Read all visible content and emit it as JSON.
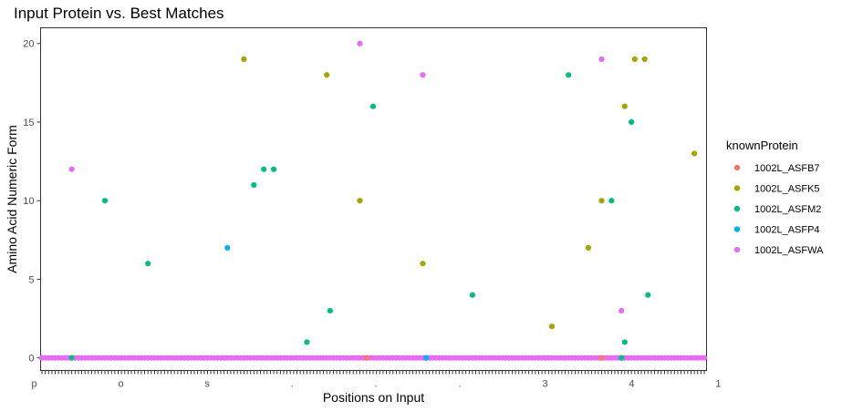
{
  "chart_data": {
    "type": "scatter",
    "title": "Input Protein vs. Best Matches",
    "xlabel": "Positions on Input",
    "ylabel": "Amino Acid Numeric Form",
    "ylim": [
      -0.8,
      21
    ],
    "yticks": [
      0,
      5,
      10,
      15,
      20
    ],
    "x_category_count": 201,
    "x_tick_labels_overlapping": "pos...341",
    "grid": false,
    "legend": {
      "title": "knownProtein",
      "placement": "right"
    },
    "series": [
      {
        "name": "1002L_ASFB7",
        "color": "#F8766D",
        "points": [
          [
            99,
            0
          ],
          [
            170,
            0
          ]
        ]
      },
      {
        "name": "1002L_ASFK5",
        "color": "#A3A500",
        "points": [
          [
            62,
            19
          ],
          [
            87,
            18
          ],
          [
            97,
            10
          ],
          [
            116,
            6
          ],
          [
            155,
            2
          ],
          [
            166,
            7
          ],
          [
            170,
            10
          ],
          [
            177,
            16
          ],
          [
            180,
            19
          ],
          [
            183,
            19
          ],
          [
            198,
            13
          ]
        ]
      },
      {
        "name": "1002L_ASFM2",
        "color": "#00BF7D",
        "points": [
          [
            10,
            0
          ],
          [
            20,
            10
          ],
          [
            33,
            6
          ],
          [
            65,
            11
          ],
          [
            68,
            12
          ],
          [
            71,
            12
          ],
          [
            81,
            1
          ],
          [
            88,
            3
          ],
          [
            101,
            16
          ],
          [
            131,
            4
          ],
          [
            160,
            18
          ],
          [
            173,
            10
          ],
          [
            176,
            0
          ],
          [
            177,
            1
          ],
          [
            179,
            15
          ],
          [
            184,
            4
          ]
        ]
      },
      {
        "name": "1002L_ASFP4",
        "color": "#00B0F6",
        "points": [
          [
            57,
            7
          ],
          [
            117,
            0
          ]
        ]
      },
      {
        "name": "1002L_ASFWA",
        "color": "#E76BF3",
        "points": [
          [
            10,
            12
          ],
          [
            97,
            20
          ],
          [
            116,
            18
          ],
          [
            170,
            19
          ],
          [
            176,
            3
          ]
        ]
      }
    ],
    "baseline": {
      "y": 0,
      "series": "1002L_ASFWA"
    }
  }
}
